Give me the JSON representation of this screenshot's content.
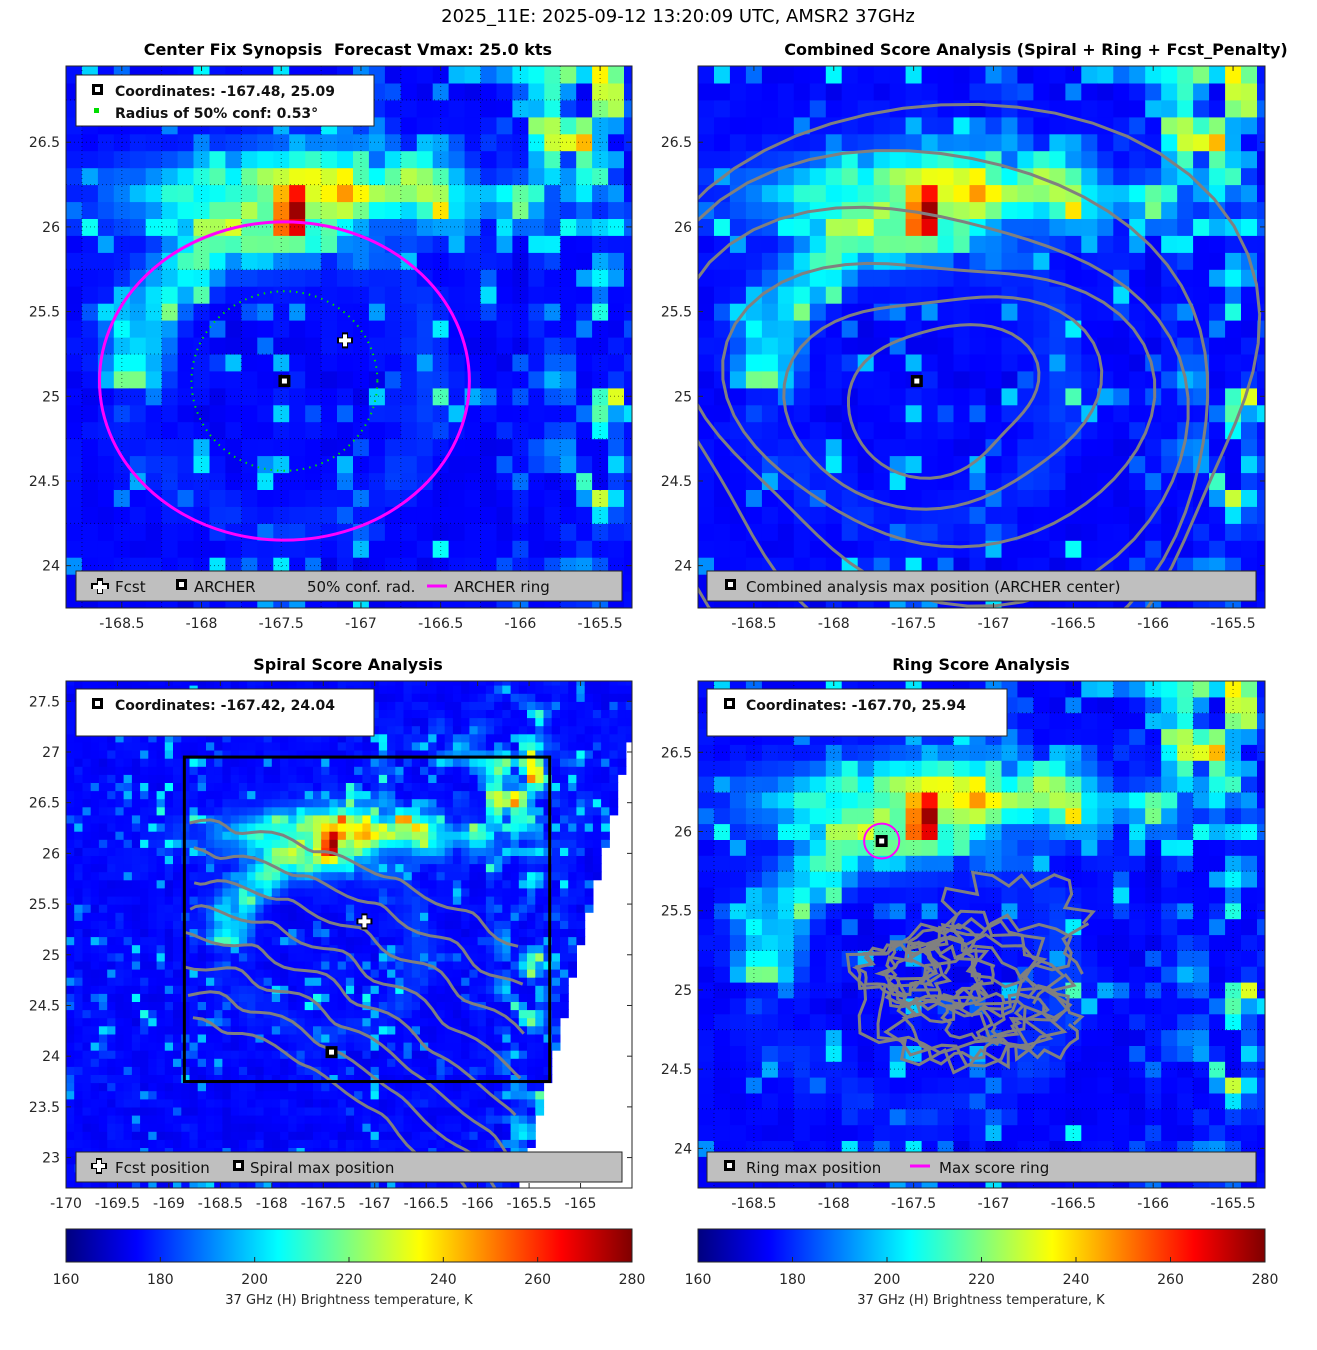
{
  "figure": {
    "suptitle": "2025_11E: 2025-09-12 13:20:09 UTC, AMSR2 37GHz"
  },
  "colormap": {
    "name": "jet",
    "stops": [
      "#00007f",
      "#0000ff",
      "#007fff",
      "#00ffff",
      "#7fff7f",
      "#ffff00",
      "#ff7f00",
      "#ff0000",
      "#7f0000"
    ]
  },
  "chart_data": [
    {
      "type": "heatmap",
      "title_left": "Center Fix Synopsis",
      "title_right": "Forecast Vmax: 25.0 kts",
      "xlim": [
        -168.85,
        -165.3
      ],
      "ylim": [
        23.75,
        26.95
      ],
      "xticks": [
        -168.5,
        -168,
        -167.5,
        -167,
        -166.5,
        -166,
        -165.5
      ],
      "xtick_labels": [
        "-168.5",
        "-168",
        "-167.5",
        "-167",
        "-166.5",
        "-166",
        "-165.5"
      ],
      "yticks": [
        24,
        24.5,
        25,
        25.5,
        26,
        26.5
      ],
      "ytick_labels": [
        "24",
        "24.5",
        "25",
        "25.5",
        "26",
        "26.5"
      ],
      "info_box": [
        "Coordinates: -167.48, 25.09",
        "Radius of 50% conf: 0.53°"
      ],
      "fcst_position": [
        -167.1,
        25.33
      ],
      "archer_center": [
        -167.48,
        25.09
      ],
      "archer_ring_radius_deg": 1.16,
      "conf_radius_deg": 0.53,
      "legend": [
        "Fcst",
        "ARCHER",
        "50% conf. rad.",
        "ARCHER ring"
      ],
      "colors": {
        "ring": "#ff00ff",
        "conf": "#00dd00"
      }
    },
    {
      "type": "heatmap",
      "title": "Combined Score Analysis (Spiral + Ring + Fcst_Penalty)",
      "xlim": [
        -168.85,
        -165.3
      ],
      "ylim": [
        23.75,
        26.95
      ],
      "xticks": [
        -168.5,
        -168,
        -167.5,
        -167,
        -166.5,
        -166,
        -165.5
      ],
      "xtick_labels": [
        "-168.5",
        "-168",
        "-167.5",
        "-167",
        "-166.5",
        "-166",
        "-165.5"
      ],
      "yticks": [
        24,
        24.5,
        25,
        25.5,
        26,
        26.5
      ],
      "ytick_labels": [
        "24",
        "24.5",
        "25",
        "25.5",
        "26",
        "26.5"
      ],
      "max_position": [
        -167.48,
        25.09
      ],
      "legend": [
        "Combined analysis max position (ARCHER center)"
      ]
    },
    {
      "type": "heatmap",
      "title": "Spiral Score Analysis",
      "xlim": [
        -170,
        -164.5
      ],
      "ylim": [
        22.7,
        27.7
      ],
      "xticks": [
        -170,
        -169.5,
        -169,
        -168.5,
        -168,
        -167.5,
        -167,
        -166.5,
        -166,
        -165.5,
        -165
      ],
      "xtick_labels": [
        "-170",
        "-169.5",
        "-169",
        "-168.5",
        "-168",
        "-167.5",
        "-167",
        "-166.5",
        "-166",
        "-165.5",
        "-165"
      ],
      "yticks": [
        23,
        23.5,
        24,
        24.5,
        25,
        25.5,
        26,
        26.5,
        27,
        27.5
      ],
      "ytick_labels": [
        "23",
        "23.5",
        "24",
        "24.5",
        "25",
        "25.5",
        "26",
        "26.5",
        "27",
        "27.5"
      ],
      "info_box": [
        "Coordinates: -167.42, 24.04"
      ],
      "fcst_position": [
        -167.1,
        25.33
      ],
      "spiral_max": [
        -167.42,
        24.04
      ],
      "search_box": {
        "x": [
          -168.85,
          -165.3
        ],
        "y": [
          23.75,
          26.95
        ]
      },
      "legend": [
        "Fcst position",
        "Spiral max position"
      ]
    },
    {
      "type": "heatmap",
      "title": "Ring Score Analysis",
      "xlim": [
        -168.85,
        -165.3
      ],
      "ylim": [
        23.75,
        26.95
      ],
      "xticks": [
        -168.5,
        -168,
        -167.5,
        -167,
        -166.5,
        -166,
        -165.5
      ],
      "xtick_labels": [
        "-168.5",
        "-168",
        "-167.5",
        "-167",
        "-166.5",
        "-166",
        "-165.5"
      ],
      "yticks": [
        24,
        24.5,
        25,
        25.5,
        26,
        26.5
      ],
      "ytick_labels": [
        "24",
        "24.5",
        "25",
        "25.5",
        "26",
        "26.5"
      ],
      "info_box": [
        "Coordinates: -167.70, 25.94"
      ],
      "ring_max": [
        -167.7,
        25.94
      ],
      "ring_radius_deg": 0.11,
      "legend": [
        "Ring max position",
        "Max score ring"
      ],
      "colors": {
        "ring": "#ff00ff"
      }
    }
  ],
  "colorbars": [
    {
      "range": [
        160,
        280
      ],
      "ticks": [
        160,
        180,
        200,
        220,
        240,
        260,
        280
      ],
      "tick_labels": [
        "160",
        "180",
        "200",
        "220",
        "240",
        "260",
        "280"
      ],
      "label": "37 GHz (H) Brightness temperature, K"
    },
    {
      "range": [
        160,
        280
      ],
      "ticks": [
        160,
        180,
        200,
        220,
        240,
        260,
        280
      ],
      "tick_labels": [
        "160",
        "180",
        "200",
        "220",
        "240",
        "260",
        "280"
      ],
      "label": "37 GHz (H) Brightness temperature, K"
    }
  ]
}
